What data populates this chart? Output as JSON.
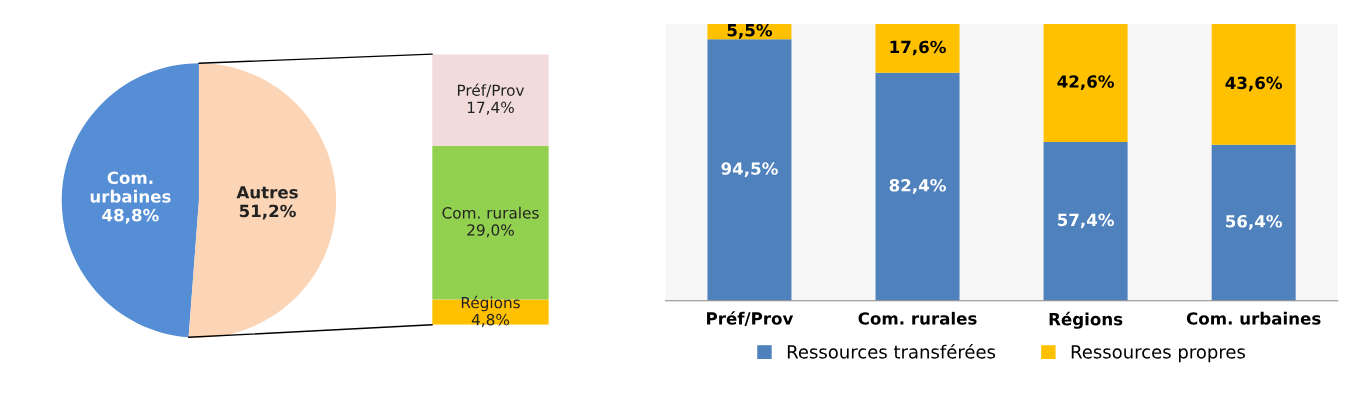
{
  "chart_data": [
    {
      "type": "pie",
      "categories": [
        "Com. urbaines",
        "Autres"
      ],
      "values": [
        48.8,
        51.2
      ],
      "colors": [
        "#558ed5",
        "#fbd5b5"
      ],
      "value_labels": [
        "48,8%",
        "51,2%"
      ]
    },
    {
      "type": "bar",
      "stacked": true,
      "categories": [
        null
      ],
      "series": [
        {
          "name": "Régions",
          "color": "#ffc000",
          "values": [
            4.8
          ],
          "value_labels": [
            "4,8%"
          ]
        },
        {
          "name": "Com. rurales",
          "color": "#92d050",
          "values": [
            29.0
          ],
          "value_labels": [
            "29,0%"
          ]
        },
        {
          "name": "Préf/Prov",
          "color": "#f2dcdb",
          "values": [
            17.4
          ],
          "value_labels": [
            "17,4%"
          ]
        }
      ]
    },
    {
      "type": "bar",
      "stacked": true,
      "categories": [
        "Préf/Prov",
        "Com. rurales",
        "Régions",
        "Com. urbaines"
      ],
      "legend": "bottom",
      "series": [
        {
          "name": "Ressources transférées",
          "color": "#4f81bd",
          "values": [
            94.5,
            82.4,
            57.4,
            56.4
          ],
          "value_labels": [
            "94,5%",
            "82,4%",
            "57,4%",
            "56,4%"
          ]
        },
        {
          "name": "Ressources propres",
          "color": "#ffc000",
          "values": [
            5.5,
            17.6,
            42.6,
            43.6
          ],
          "value_labels": [
            "5,5%",
            "17,6%",
            "42,6%",
            "43,6%"
          ]
        }
      ]
    }
  ]
}
